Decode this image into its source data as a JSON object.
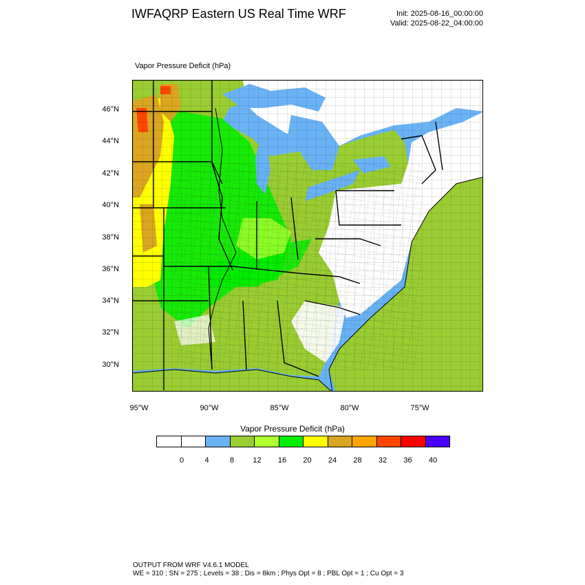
{
  "header": {
    "title": "IWFAQRP Eastern US Real Time WRF",
    "init": "Init: 2025-08-16_00:00:00",
    "valid": "Valid: 2025-08-22_04:00:00"
  },
  "plot": {
    "field_label": "Vapor Pressure Deficit   (hPa)",
    "lat_labels": [
      "46°N",
      "44°N",
      "42°N",
      "40°N",
      "38°N",
      "36°N",
      "34°N",
      "32°N",
      "30°N"
    ],
    "lon_labels": [
      "95°W",
      "90°W",
      "85°W",
      "80°W",
      "75°W"
    ]
  },
  "colorbar": {
    "title": "Vapor Pressure Deficit  (hPa)",
    "labels": [
      "0",
      "4",
      "8",
      "12",
      "16",
      "20",
      "24",
      "28",
      "32",
      "36",
      "40"
    ],
    "colors": [
      "#ffffff",
      "#ffffff",
      "#69b3f5",
      "#9acd32",
      "#adff2f",
      "#00ee00",
      "#ffff00",
      "#daa520",
      "#ffa500",
      "#ff4500",
      "#ff0000",
      "#4b00ff"
    ]
  },
  "map_colors": {
    "ocean": "#69b3f5",
    "land_low": "#9acd32",
    "great_lakes": "#69b3f5",
    "white_zone": "#ffffff"
  },
  "footer": {
    "line1": "OUTPUT FROM WRF V4.6.1 MODEL",
    "line2": "WE = 310 ; SN = 275 ; Levels = 38 ; Dis = 8km ; Phys Opt = 8 ; PBL Opt = 1 ; Cu Opt = 3"
  }
}
